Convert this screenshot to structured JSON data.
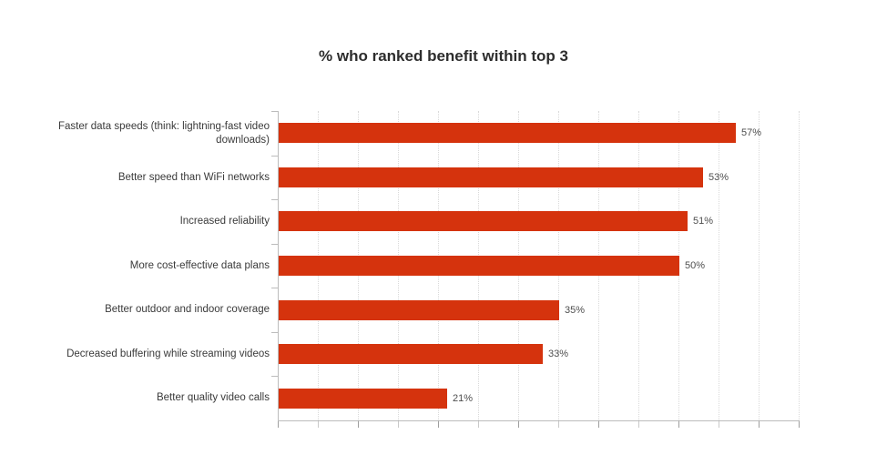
{
  "chart_data": {
    "type": "bar",
    "orientation": "horizontal",
    "title": "% who ranked benefit within top 3",
    "categories": [
      "Faster data speeds (think: lightning-fast video\ndownloads)",
      "Better speed than WiFi networks",
      "Increased reliability",
      "More cost-effective data plans",
      "Better outdoor and indoor coverage",
      "Decreased buffering while streaming videos",
      "Better quality video calls"
    ],
    "values": [
      57,
      53,
      51,
      50,
      35,
      33,
      21
    ],
    "value_labels": [
      "57%",
      "53%",
      "51%",
      "50%",
      "35%",
      "33%",
      "21%"
    ],
    "xlabel": "",
    "ylabel": "",
    "xlim": [
      0,
      65
    ],
    "x_tick_step": 5,
    "x_axis_tick_labels": "none",
    "grid": "vertical-dotted",
    "legend": "none",
    "bar_color": "#d5330d",
    "colors": {
      "title": "#2d2d2d",
      "category_label": "#3a3a3a",
      "value_label": "#4e4e4e",
      "axis_line": "#bcbcbc",
      "gridline": "#d9d9d9",
      "tick_major": "#9e9e9e",
      "tick_minor": "#c9c9c9"
    }
  }
}
